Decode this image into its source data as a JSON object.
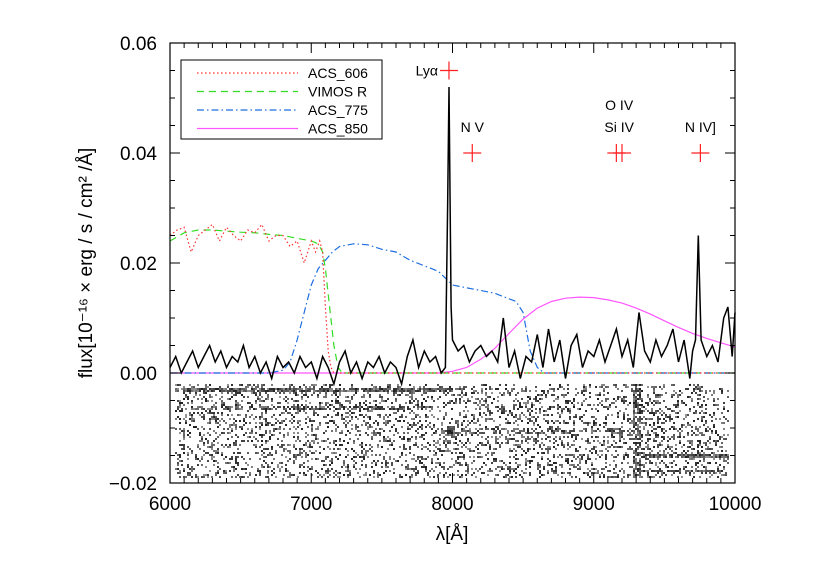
{
  "chart_data": {
    "type": "line",
    "title": "",
    "xlabel": "λ[Å]",
    "ylabel": "flux[10⁻¹⁶ × erg / s / cm² /Å]",
    "xlim": [
      6000,
      10000
    ],
    "ylim": [
      -0.02,
      0.06
    ],
    "x_ticks": [
      6000,
      7000,
      8000,
      9000,
      10000
    ],
    "x_tick_labels": [
      "6000",
      "7000",
      "8000",
      "9000",
      "10000"
    ],
    "y_ticks": [
      -0.02,
      0.0,
      0.02,
      0.04,
      0.06
    ],
    "y_tick_labels": [
      "−0.02",
      "0.00",
      "0.02",
      "0.04",
      "0.06"
    ],
    "grid": false,
    "legend_position": "top-left",
    "colors": {
      "spectrum": "#000000",
      "markers": "#ff2020",
      "ACS_606": "#ff3030",
      "VIMOS R": "#33dd22",
      "ACS_775": "#1f6fe0",
      "ACS_850": "#ff55ff"
    },
    "series": [
      {
        "name": "ACS_606",
        "style": "dotted",
        "x": [
          6000,
          6050,
          6100,
          6150,
          6200,
          6250,
          6300,
          6350,
          6400,
          6450,
          6500,
          6550,
          6600,
          6650,
          6700,
          6750,
          6800,
          6850,
          6900,
          6950,
          7000,
          7030,
          7060,
          7080,
          7100,
          7120,
          7140,
          7160,
          7200,
          10000
        ],
        "y": [
          0.025,
          0.026,
          0.0265,
          0.022,
          0.025,
          0.026,
          0.027,
          0.024,
          0.0265,
          0.025,
          0.024,
          0.026,
          0.0255,
          0.027,
          0.024,
          0.025,
          0.025,
          0.023,
          0.024,
          0.02,
          0.024,
          0.022,
          0.024,
          0.022,
          0.012,
          0.004,
          0.001,
          0.0,
          0.0,
          0.0
        ]
      },
      {
        "name": "VIMOS R",
        "style": "dashed",
        "x": [
          6000,
          6100,
          6200,
          6300,
          6400,
          6500,
          6600,
          6700,
          6800,
          6900,
          7000,
          7050,
          7080,
          7100,
          7130,
          7160,
          7190,
          7220,
          7260,
          10000
        ],
        "y": [
          0.024,
          0.0255,
          0.026,
          0.026,
          0.0258,
          0.0256,
          0.0255,
          0.0252,
          0.025,
          0.0245,
          0.024,
          0.0235,
          0.022,
          0.019,
          0.012,
          0.005,
          0.001,
          0.0,
          0.0,
          0.0
        ]
      },
      {
        "name": "ACS_775",
        "style": "dashdot",
        "x": [
          6000,
          6700,
          6800,
          6850,
          6900,
          6950,
          7000,
          7050,
          7100,
          7150,
          7200,
          7300,
          7400,
          7500,
          7600,
          7700,
          7800,
          7900,
          8000,
          8100,
          8200,
          8300,
          8400,
          8450,
          8500,
          8550,
          8600,
          8650,
          10000
        ],
        "y": [
          0.0,
          0.0,
          0.0005,
          0.002,
          0.006,
          0.011,
          0.016,
          0.019,
          0.0205,
          0.022,
          0.023,
          0.0235,
          0.0233,
          0.0225,
          0.022,
          0.0205,
          0.0195,
          0.0185,
          0.016,
          0.0155,
          0.015,
          0.0145,
          0.0135,
          0.013,
          0.011,
          0.004,
          0.001,
          0.0,
          0.0
        ]
      },
      {
        "name": "ACS_850",
        "style": "solid",
        "x": [
          6000,
          7900,
          8000,
          8100,
          8200,
          8300,
          8400,
          8500,
          8600,
          8700,
          8800,
          8900,
          9000,
          9100,
          9200,
          9300,
          9400,
          9500,
          9600,
          9700,
          9800,
          9900,
          10000
        ],
        "y": [
          0.0,
          0.0,
          0.0003,
          0.001,
          0.0025,
          0.0045,
          0.0072,
          0.0098,
          0.0118,
          0.013,
          0.0136,
          0.0138,
          0.0137,
          0.0133,
          0.0127,
          0.0118,
          0.0107,
          0.0095,
          0.0083,
          0.0072,
          0.0063,
          0.0055,
          0.0047
        ]
      },
      {
        "name": "",
        "style": "solid-black",
        "x": [
          6000,
          6040,
          6080,
          6120,
          6160,
          6200,
          6240,
          6280,
          6320,
          6360,
          6400,
          6440,
          6480,
          6520,
          6560,
          6600,
          6640,
          6680,
          6720,
          6760,
          6800,
          6840,
          6880,
          6920,
          6960,
          7000,
          7040,
          7080,
          7120,
          7160,
          7200,
          7240,
          7280,
          7320,
          7360,
          7400,
          7440,
          7480,
          7520,
          7560,
          7600,
          7640,
          7680,
          7720,
          7760,
          7800,
          7840,
          7880,
          7920,
          7950,
          7965,
          7975,
          7990,
          8000,
          8040,
          8080,
          8120,
          8160,
          8200,
          8240,
          8280,
          8320,
          8360,
          8400,
          8440,
          8480,
          8520,
          8560,
          8600,
          8640,
          8680,
          8720,
          8760,
          8800,
          8840,
          8880,
          8920,
          8960,
          9000,
          9040,
          9080,
          9120,
          9160,
          9200,
          9240,
          9280,
          9320,
          9360,
          9400,
          9440,
          9480,
          9520,
          9560,
          9600,
          9640,
          9680,
          9700,
          9720,
          9740,
          9760,
          9800,
          9840,
          9880,
          9920,
          9950,
          9980,
          10000
        ],
        "y": [
          0.001,
          0.003,
          0.0,
          0.002,
          0.004,
          0.001,
          0.003,
          0.005,
          0.002,
          0.004,
          0.001,
          0.003,
          0.002,
          0.005,
          0.001,
          0.003,
          0.0,
          0.002,
          -0.001,
          0.003,
          0.001,
          0.002,
          0.0,
          0.003,
          0.001,
          0.002,
          -0.001,
          0.003,
          0.001,
          -0.002,
          0.002,
          0.004,
          0.0,
          0.002,
          -0.001,
          0.002,
          0.001,
          0.003,
          0.0,
          0.002,
          0.001,
          -0.002,
          0.003,
          0.006,
          0.001,
          0.004,
          0.002,
          0.003,
          0.0,
          0.001,
          0.03,
          0.052,
          0.012,
          0.006,
          0.004,
          0.005,
          0.002,
          0.004,
          0.005,
          0.003,
          0.004,
          0.002,
          0.01,
          0.001,
          0.004,
          -0.001,
          0.003,
          0.002,
          0.007,
          0.001,
          0.008,
          0.002,
          0.006,
          -0.001,
          0.005,
          0.007,
          0.001,
          0.004,
          0.003,
          0.006,
          0.002,
          0.005,
          0.008,
          0.003,
          0.006,
          0.001,
          0.011,
          0.004,
          0.002,
          0.006,
          0.003,
          0.005,
          0.008,
          0.002,
          0.006,
          -0.001,
          0.004,
          0.006,
          0.025,
          0.006,
          0.003,
          0.005,
          0.002,
          0.01,
          0.012,
          0.003,
          0.011
        ]
      }
    ],
    "line_markers": [
      {
        "label": "Lyα",
        "wavelength": 7975,
        "flux": 0.055,
        "label_side": "left"
      },
      {
        "label": "N V",
        "wavelength": 8140,
        "flux": 0.04,
        "label_side": "above"
      },
      {
        "label": "Si IV",
        "wavelength": 9160,
        "flux": 0.04,
        "label_side": "above"
      },
      {
        "label": "O IV",
        "wavelength": 9200,
        "flux": 0.04,
        "label_side": "above2"
      },
      {
        "label": "N IV]",
        "wavelength": 9755,
        "flux": 0.04,
        "label_side": "above"
      }
    ]
  }
}
